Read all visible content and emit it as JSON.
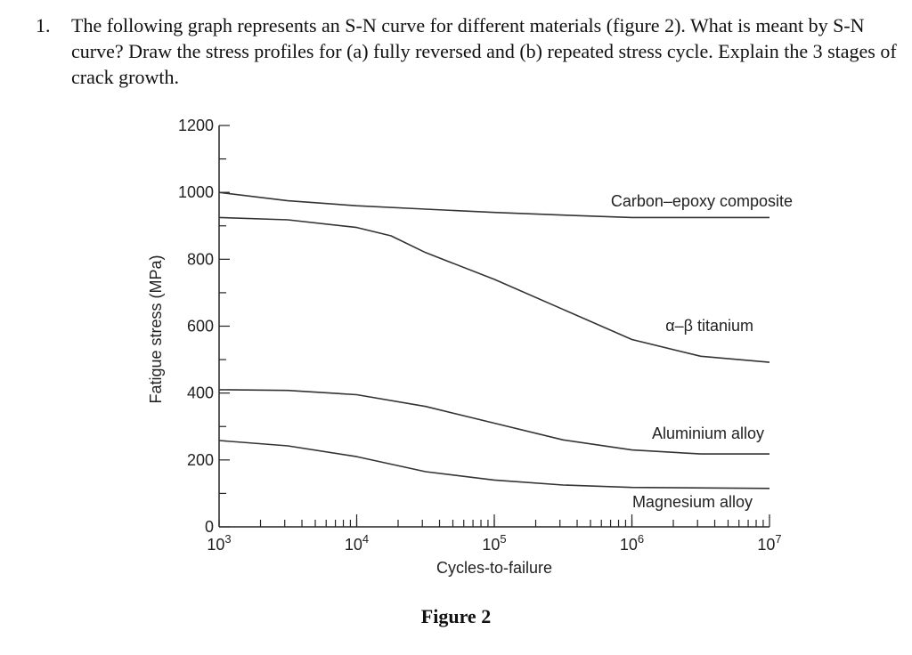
{
  "question": {
    "number": "1.",
    "text": "The following graph represents an S-N curve for different materials (figure 2). What is meant by S-N curve? Draw the stress profiles for (a) fully reversed and (b) repeated stress cycle. Explain the 3 stages of crack growth."
  },
  "figure_caption": "Figure 2",
  "chart_data": {
    "type": "line",
    "xlabel": "Cycles-to-failure",
    "ylabel": "Fatigue stress (MPa)",
    "xscale": "log",
    "xlim": [
      1000,
      10000000
    ],
    "ylim": [
      0,
      1200
    ],
    "xticks": [
      {
        "v": 1000,
        "base": "10",
        "exp": "3"
      },
      {
        "v": 10000,
        "base": "10",
        "exp": "4"
      },
      {
        "v": 100000,
        "base": "10",
        "exp": "5"
      },
      {
        "v": 1000000,
        "base": "10",
        "exp": "6"
      },
      {
        "v": 10000000,
        "base": "10",
        "exp": "7"
      }
    ],
    "yticks": [
      0,
      200,
      400,
      600,
      800,
      1000,
      1200
    ],
    "grid": false,
    "series": [
      {
        "name": "Carbon–epoxy composite",
        "x": [
          1000,
          3162,
          10000,
          31623,
          100000,
          316228,
          1000000,
          10000000
        ],
        "y": [
          1000,
          975,
          960,
          950,
          940,
          932,
          925,
          925
        ]
      },
      {
        "name": "α–β titanium",
        "x": [
          1000,
          3162,
          10000,
          17783,
          31623,
          100000,
          316228,
          1000000,
          3162278,
          10000000
        ],
        "y": [
          925,
          918,
          895,
          870,
          820,
          740,
          650,
          560,
          510,
          492
        ]
      },
      {
        "name": "Aluminium alloy",
        "x": [
          1000,
          3162,
          10000,
          31623,
          100000,
          316228,
          1000000,
          3162278,
          10000000
        ],
        "y": [
          410,
          408,
          395,
          360,
          310,
          260,
          230,
          218,
          218
        ]
      },
      {
        "name": "Magnesium alloy",
        "x": [
          1000,
          3162,
          10000,
          31623,
          100000,
          316228,
          1000000,
          10000000
        ],
        "y": [
          258,
          242,
          210,
          165,
          140,
          125,
          118,
          115
        ]
      }
    ]
  }
}
